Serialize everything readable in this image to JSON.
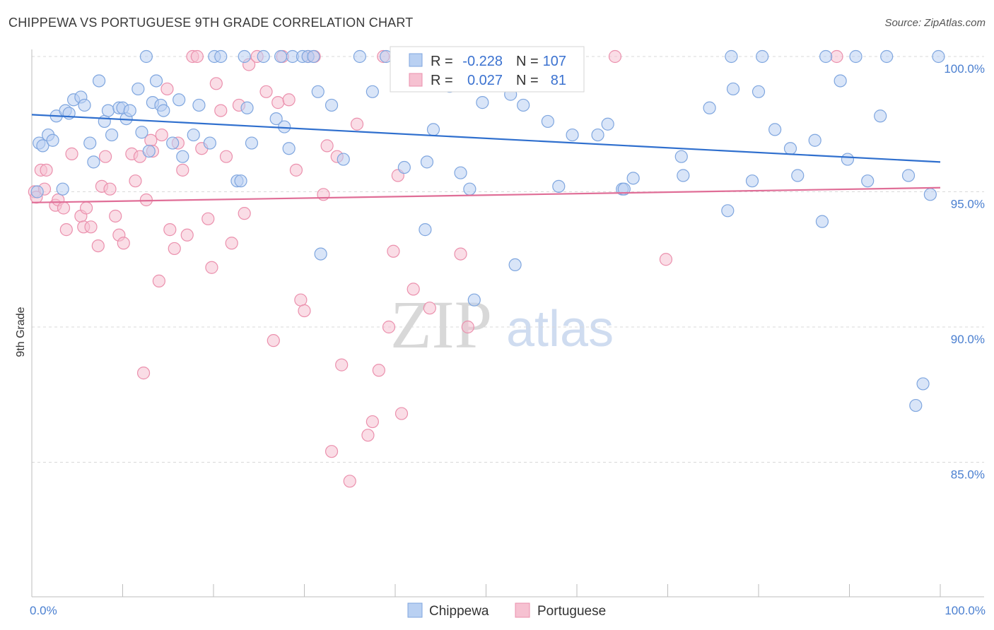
{
  "header": {
    "title": "CHIPPEWA VS PORTUGUESE 9TH GRADE CORRELATION CHART",
    "source": "Source: ZipAtlas.com"
  },
  "watermark": {
    "zip": "ZIP",
    "atlas": "atlas"
  },
  "legend": {
    "rows": [
      {
        "r_label": "R =",
        "r_value": "-0.228",
        "n_label": "N =",
        "n_value": "107"
      },
      {
        "r_label": "R =",
        "r_value": "0.027",
        "n_label": "N =",
        "n_value": "81"
      }
    ]
  },
  "bottom_legend": {
    "chippewa": "Chippewa",
    "portuguese": "Portuguese"
  },
  "colors": {
    "chippewa_fill": "#b9d0f2",
    "chippewa_stroke": "#7fa6df",
    "chippewa_line": "#2f6fce",
    "portuguese_fill": "#f6c1d1",
    "portuguese_stroke": "#eb90ad",
    "portuguese_line": "#e06e97",
    "grid": "#d9d9d9",
    "axis_label": "#4a7fd0"
  },
  "chart_data": {
    "type": "scatter",
    "title": "CHIPPEWA VS PORTUGUESE 9TH GRADE CORRELATION CHART",
    "xlabel": "",
    "ylabel": "9th Grade",
    "xlim": [
      0,
      100
    ],
    "ylim": [
      80.3,
      100.8
    ],
    "x_tick_labels": [
      "0.0%",
      "100.0%"
    ],
    "y_ticks": [
      85,
      90,
      95,
      100
    ],
    "y_tick_labels": [
      "85.0%",
      "90.0%",
      "95.0%",
      "100.0%"
    ],
    "grid": true,
    "legend_position": "top-center",
    "series": [
      {
        "name": "Chippewa",
        "R": -0.228,
        "N": 107,
        "trend": {
          "x": [
            0,
            100
          ],
          "y": [
            97.85,
            96.1
          ]
        },
        "points": [
          [
            0.6,
            95.0
          ],
          [
            0.8,
            96.8
          ],
          [
            1.2,
            96.7
          ],
          [
            1.8,
            97.1
          ],
          [
            2.3,
            96.9
          ],
          [
            2.7,
            97.8
          ],
          [
            3.4,
            95.1
          ],
          [
            3.7,
            98.0
          ],
          [
            4.1,
            97.9
          ],
          [
            4.6,
            98.4
          ],
          [
            5.4,
            98.5
          ],
          [
            5.8,
            98.2
          ],
          [
            6.4,
            96.8
          ],
          [
            6.8,
            96.1
          ],
          [
            7.4,
            99.1
          ],
          [
            8.0,
            97.6
          ],
          [
            8.4,
            98.0
          ],
          [
            8.8,
            97.1
          ],
          [
            9.6,
            98.1
          ],
          [
            10.0,
            98.1
          ],
          [
            10.4,
            97.7
          ],
          [
            10.8,
            98.0
          ],
          [
            11.7,
            98.8
          ],
          [
            12.1,
            97.2
          ],
          [
            12.6,
            100.0
          ],
          [
            12.9,
            96.5
          ],
          [
            13.3,
            98.3
          ],
          [
            13.7,
            99.1
          ],
          [
            14.2,
            98.2
          ],
          [
            14.5,
            98.0
          ],
          [
            15.5,
            96.8
          ],
          [
            16.2,
            98.4
          ],
          [
            16.6,
            96.3
          ],
          [
            17.8,
            97.1
          ],
          [
            18.4,
            98.2
          ],
          [
            19.6,
            96.8
          ],
          [
            20.1,
            100.0
          ],
          [
            20.8,
            100.0
          ],
          [
            22.6,
            95.4
          ],
          [
            23.0,
            95.4
          ],
          [
            23.4,
            100.0
          ],
          [
            23.7,
            98.1
          ],
          [
            24.2,
            96.8
          ],
          [
            25.5,
            100.0
          ],
          [
            26.9,
            97.7
          ],
          [
            27.4,
            100.0
          ],
          [
            27.8,
            97.4
          ],
          [
            28.3,
            96.6
          ],
          [
            28.7,
            100.0
          ],
          [
            29.8,
            100.0
          ],
          [
            30.4,
            100.0
          ],
          [
            31.0,
            100.0
          ],
          [
            31.5,
            98.7
          ],
          [
            31.8,
            92.7
          ],
          [
            33.0,
            98.2
          ],
          [
            34.3,
            96.2
          ],
          [
            36.1,
            100.0
          ],
          [
            37.5,
            98.7
          ],
          [
            39.0,
            100.0
          ],
          [
            41.0,
            95.9
          ],
          [
            43.3,
            93.6
          ],
          [
            43.5,
            96.1
          ],
          [
            44.2,
            97.3
          ],
          [
            46.0,
            98.9
          ],
          [
            47.2,
            95.7
          ],
          [
            48.2,
            95.1
          ],
          [
            48.7,
            91.0
          ],
          [
            49.6,
            98.3
          ],
          [
            51.0,
            100.0
          ],
          [
            52.7,
            98.6
          ],
          [
            53.2,
            92.3
          ],
          [
            54.1,
            98.2
          ],
          [
            55.3,
            100.0
          ],
          [
            56.8,
            97.6
          ],
          [
            58.0,
            95.2
          ],
          [
            59.5,
            97.1
          ],
          [
            62.3,
            97.1
          ],
          [
            63.4,
            97.5
          ],
          [
            65.0,
            95.1
          ],
          [
            65.2,
            95.1
          ],
          [
            66.2,
            95.5
          ],
          [
            71.5,
            96.3
          ],
          [
            71.7,
            95.6
          ],
          [
            74.6,
            98.1
          ],
          [
            76.6,
            94.3
          ],
          [
            77.0,
            100.0
          ],
          [
            77.2,
            98.8
          ],
          [
            79.3,
            95.4
          ],
          [
            80.0,
            98.7
          ],
          [
            80.4,
            100.0
          ],
          [
            81.8,
            97.3
          ],
          [
            83.5,
            96.6
          ],
          [
            84.3,
            95.6
          ],
          [
            86.2,
            96.9
          ],
          [
            87.0,
            93.9
          ],
          [
            87.4,
            100.0
          ],
          [
            89.0,
            99.1
          ],
          [
            89.8,
            96.2
          ],
          [
            90.7,
            100.0
          ],
          [
            92.0,
            95.4
          ],
          [
            93.4,
            97.8
          ],
          [
            94.1,
            100.0
          ],
          [
            96.5,
            95.6
          ],
          [
            97.3,
            87.1
          ],
          [
            98.1,
            87.9
          ],
          [
            98.9,
            94.9
          ],
          [
            99.8,
            100.0
          ]
        ]
      },
      {
        "name": "Portuguese",
        "R": 0.027,
        "N": 81,
        "trend": {
          "x": [
            0,
            100
          ],
          "y": [
            94.6,
            95.15
          ]
        },
        "points": [
          [
            0.3,
            95.0
          ],
          [
            0.5,
            94.8
          ],
          [
            1.0,
            95.8
          ],
          [
            1.4,
            95.1
          ],
          [
            1.6,
            95.8
          ],
          [
            2.6,
            94.5
          ],
          [
            2.9,
            94.7
          ],
          [
            3.5,
            94.4
          ],
          [
            3.8,
            93.6
          ],
          [
            4.4,
            96.4
          ],
          [
            5.4,
            94.1
          ],
          [
            5.7,
            93.7
          ],
          [
            6.0,
            94.4
          ],
          [
            6.5,
            93.7
          ],
          [
            7.3,
            93.0
          ],
          [
            7.7,
            95.2
          ],
          [
            8.1,
            96.3
          ],
          [
            8.6,
            95.1
          ],
          [
            9.2,
            94.1
          ],
          [
            9.6,
            93.4
          ],
          [
            10.1,
            93.1
          ],
          [
            11.0,
            96.4
          ],
          [
            11.4,
            95.4
          ],
          [
            11.9,
            96.3
          ],
          [
            12.3,
            88.3
          ],
          [
            12.6,
            94.7
          ],
          [
            13.1,
            96.9
          ],
          [
            13.3,
            96.5
          ],
          [
            14.0,
            91.7
          ],
          [
            14.3,
            97.1
          ],
          [
            14.9,
            98.8
          ],
          [
            15.2,
            93.6
          ],
          [
            15.7,
            92.9
          ],
          [
            16.1,
            96.8
          ],
          [
            16.6,
            95.8
          ],
          [
            17.1,
            93.4
          ],
          [
            17.7,
            100.0
          ],
          [
            18.2,
            100.0
          ],
          [
            18.7,
            96.6
          ],
          [
            19.4,
            94.0
          ],
          [
            19.8,
            92.2
          ],
          [
            20.3,
            99.0
          ],
          [
            20.8,
            98.0
          ],
          [
            21.4,
            96.3
          ],
          [
            22.0,
            93.1
          ],
          [
            22.8,
            98.2
          ],
          [
            23.4,
            94.2
          ],
          [
            23.9,
            99.7
          ],
          [
            24.8,
            100.0
          ],
          [
            25.8,
            98.7
          ],
          [
            26.6,
            89.5
          ],
          [
            27.1,
            98.3
          ],
          [
            27.6,
            100.0
          ],
          [
            28.3,
            98.4
          ],
          [
            29.1,
            95.8
          ],
          [
            29.6,
            91.0
          ],
          [
            30.0,
            90.6
          ],
          [
            30.4,
            100.0
          ],
          [
            31.1,
            100.0
          ],
          [
            32.1,
            94.9
          ],
          [
            32.5,
            96.7
          ],
          [
            33.0,
            85.4
          ],
          [
            33.6,
            96.3
          ],
          [
            34.1,
            88.6
          ],
          [
            35.0,
            84.3
          ],
          [
            35.8,
            97.5
          ],
          [
            37.0,
            86.0
          ],
          [
            37.5,
            86.5
          ],
          [
            38.2,
            88.4
          ],
          [
            38.7,
            100.0
          ],
          [
            39.3,
            90.0
          ],
          [
            39.8,
            92.8
          ],
          [
            40.3,
            95.6
          ],
          [
            40.7,
            86.8
          ],
          [
            42.0,
            91.4
          ],
          [
            43.8,
            90.7
          ],
          [
            47.2,
            92.7
          ],
          [
            48.0,
            90.0
          ],
          [
            64.2,
            100.0
          ],
          [
            69.8,
            92.5
          ],
          [
            88.6,
            100.0
          ]
        ]
      }
    ]
  }
}
